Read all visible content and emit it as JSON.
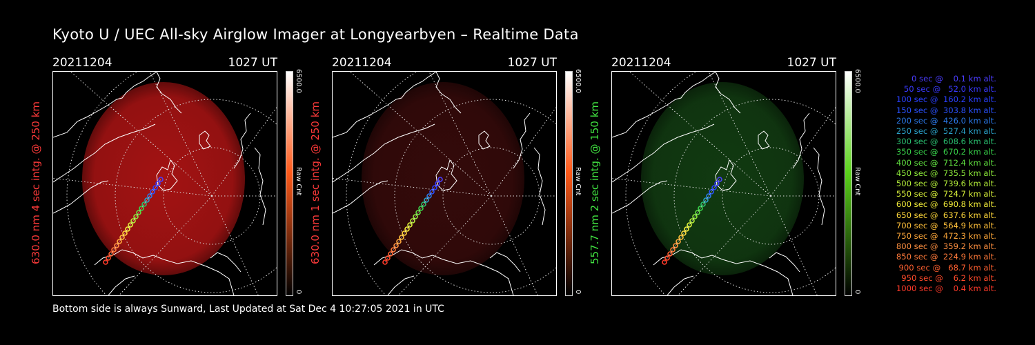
{
  "title": "Kyoto U / UEC All-sky Airglow Imager at Longyearbyen – Realtime Data",
  "panels": [
    {
      "date": "20211204",
      "time": "1027 UT",
      "ylabel": "630.0 nm 4 sec intg. @ 250 km",
      "label_color": "#ff3a3a",
      "color_max": "6500.0",
      "color_min": "0",
      "color_unit": "Raw Cnt",
      "glow": "#c01616",
      "glow_opacity": 0.85,
      "bar_top": "#ff5a1a"
    },
    {
      "date": "20211204",
      "time": "1027 UT",
      "ylabel": "630.0 nm 1 sec intg. @ 250 km",
      "label_color": "#ff3a3a",
      "color_max": "6500.0",
      "color_min": "0",
      "color_unit": "Raw Cnt",
      "glow": "#3a0b0b",
      "glow_opacity": 0.9,
      "bar_top": "#ff5a1a"
    },
    {
      "date": "20211204",
      "time": "1027 UT",
      "ylabel": "557.7 nm 2 sec intg. @ 150 km",
      "label_color": "#42e642",
      "color_max": "6500.0",
      "color_min": "0",
      "color_unit": "Raw Cnt",
      "glow": "#123d12",
      "glow_opacity": 0.95,
      "bar_top": "#5ad21a"
    }
  ],
  "footer": "Bottom side is always Sunward, Last Updated at Sat Dec  4 10:27:05 2021 in UTC",
  "legend": [
    {
      "text": "   0 sec @    0.1 km alt.",
      "color": "#4b3dff"
    },
    {
      "text": "  50 sec @   52.0 km alt.",
      "color": "#3a3aff"
    },
    {
      "text": " 100 sec @  160.2 km alt.",
      "color": "#2a40ff"
    },
    {
      "text": " 150 sec @  303.8 km alt.",
      "color": "#2a52ff"
    },
    {
      "text": " 200 sec @  426.0 km alt.",
      "color": "#2a78e8"
    },
    {
      "text": " 250 sec @  527.4 km alt.",
      "color": "#2aa0c8"
    },
    {
      "text": " 300 sec @  608.6 km alt.",
      "color": "#2ac070"
    },
    {
      "text": " 350 sec @  670.2 km alt.",
      "color": "#38d24a"
    },
    {
      "text": " 400 sec @  712.4 km alt.",
      "color": "#60e040"
    },
    {
      "text": " 450 sec @  735.5 km alt.",
      "color": "#8ce83a"
    },
    {
      "text": " 500 sec @  739.6 km alt.",
      "color": "#b4ee3a"
    },
    {
      "text": " 550 sec @  724.7 km alt.",
      "color": "#d8f03a"
    },
    {
      "text": " 600 sec @  690.8 km alt.",
      "color": "#f4ee3a"
    },
    {
      "text": " 650 sec @  637.6 km alt.",
      "color": "#ffd83a"
    },
    {
      "text": " 700 sec @  564.9 km alt.",
      "color": "#ffc03a"
    },
    {
      "text": " 750 sec @  472.3 km alt.",
      "color": "#ffa83a"
    },
    {
      "text": " 800 sec @  359.2 km alt.",
      "color": "#ff9040"
    },
    {
      "text": " 850 sec @  224.9 km alt.",
      "color": "#ff7a3a"
    },
    {
      "text": " 900 sec @   68.7 km alt.",
      "color": "#ff6030"
    },
    {
      "text": " 950 sec @    6.2 km alt.",
      "color": "#ff4a2a"
    },
    {
      "text": "1000 sec @    0.4 km alt.",
      "color": "#ff3a2a"
    }
  ]
}
